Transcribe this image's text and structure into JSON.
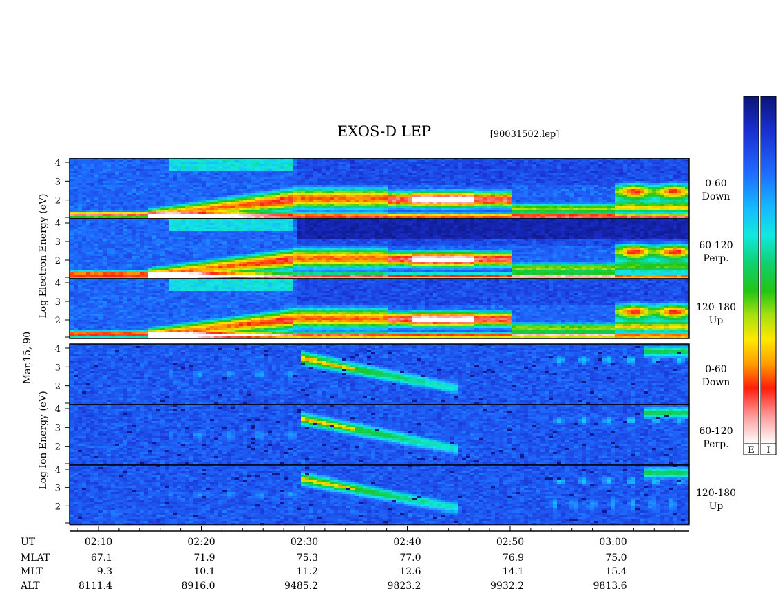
{
  "chart_data": {
    "type": "heatmap",
    "title": "EXOS-D LEP",
    "file_label": "[90031502.lep]",
    "date_label": "Mar.15,'90",
    "species": [
      {
        "name": "Electron",
        "ylabel": [
          "Log",
          "Electron",
          "Energy",
          "(eV)"
        ]
      },
      {
        "name": "Ion",
        "ylabel": [
          "Log",
          "Ion",
          "Energy",
          "(eV)"
        ]
      }
    ],
    "yticks": [
      "4",
      "3",
      "2"
    ],
    "ylim": [
      1,
      4
    ],
    "panels": [
      {
        "species": "Electron",
        "label_line1": "0-60",
        "label_line2": "Down"
      },
      {
        "species": "Electron",
        "label_line1": "60-120",
        "label_line2": "Perp."
      },
      {
        "species": "Electron",
        "label_line1": "120-180",
        "label_line2": "Up"
      },
      {
        "species": "Ion",
        "label_line1": "0-60",
        "label_line2": "Down"
      },
      {
        "species": "Ion",
        "label_line1": "60-120",
        "label_line2": "Perp."
      },
      {
        "species": "Ion",
        "label_line1": "120-180",
        "label_line2": "Up"
      }
    ],
    "colorbar_labels": [
      "E",
      "I"
    ],
    "x_rows": [
      {
        "name": "UT",
        "values": [
          "02:10",
          "02:20",
          "02:30",
          "02:40",
          "02:50",
          "03:00"
        ]
      },
      {
        "name": "MLAT",
        "values": [
          "67.1",
          "71.9",
          "75.3",
          "77.0",
          "76.9",
          "75.0"
        ]
      },
      {
        "name": "MLT",
        "values": [
          "9.3",
          "10.1",
          "11.2",
          "12.6",
          "14.1",
          "15.4"
        ]
      },
      {
        "name": "ALT",
        "values": [
          "8111.4",
          "8916.0",
          "9485.2",
          "9823.2",
          "9932.2",
          "9813.6"
        ]
      }
    ]
  }
}
